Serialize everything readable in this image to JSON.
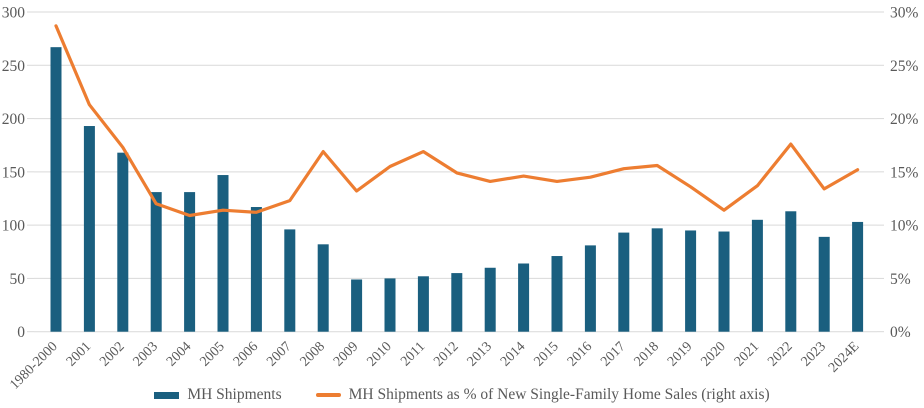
{
  "chart_data": {
    "type": "combo-bar-line",
    "categories": [
      "1980-2000",
      "2001",
      "2002",
      "2003",
      "2004",
      "2005",
      "2006",
      "2007",
      "2008",
      "2009",
      "2010",
      "2011",
      "2012",
      "2013",
      "2014",
      "2015",
      "2016",
      "2017",
      "2018",
      "2019",
      "2020",
      "2021",
      "2022",
      "2023",
      "2024E"
    ],
    "series": [
      {
        "name": "MH Shipments",
        "type": "bar",
        "axis": "left",
        "values": [
          267,
          193,
          168,
          131,
          131,
          147,
          117,
          96,
          82,
          49,
          50,
          52,
          55,
          60,
          64,
          71,
          81,
          93,
          97,
          95,
          94,
          105,
          113,
          89,
          103
        ]
      },
      {
        "name": "MH Shipments as % of New Single-Family Home Sales (right axis)",
        "type": "line",
        "axis": "right",
        "values": [
          28.7,
          21.3,
          17.3,
          12.0,
          10.9,
          11.4,
          11.2,
          12.3,
          16.9,
          13.2,
          15.5,
          16.9,
          14.9,
          14.1,
          14.6,
          14.1,
          14.5,
          15.3,
          15.6,
          13.6,
          11.4,
          13.7,
          17.6,
          13.4,
          15.2
        ]
      }
    ],
    "left_axis": {
      "min": 0,
      "max": 300,
      "ticks": [
        "0",
        "50",
        "100",
        "150",
        "200",
        "250",
        "300"
      ]
    },
    "right_axis": {
      "min": 0,
      "max": 30,
      "ticks": [
        "0%",
        "5%",
        "10%",
        "15%",
        "20%",
        "25%",
        "30%"
      ]
    },
    "grid": "horizontal",
    "legend_position": "bottom",
    "title": ""
  },
  "colors": {
    "bar": "#1A5F7F",
    "line": "#ED7D31",
    "grid": "#D9D9D9",
    "text": "#595959"
  }
}
